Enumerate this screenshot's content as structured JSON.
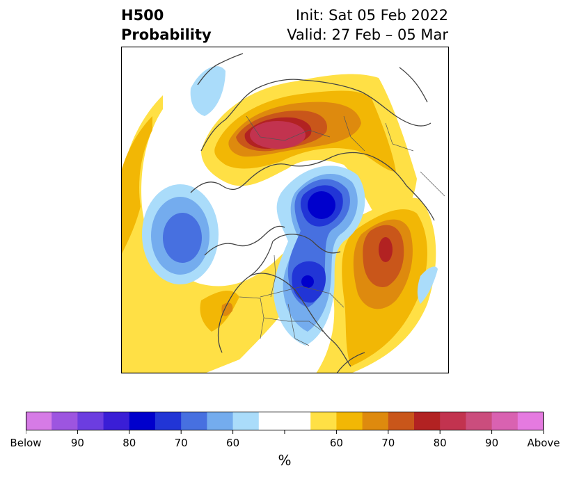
{
  "title": {
    "left_line1": "H500",
    "left_line2": "Probability",
    "right_line1": "Init: Sat 05 Feb 2022",
    "right_line2": "Valid: 27 Feb – 05 Mar"
  },
  "colorbar": {
    "colors": [
      "#d67be6",
      "#9d55e0",
      "#6c3de0",
      "#3a1ed6",
      "#0000cc",
      "#2135d6",
      "#4770e0",
      "#74acee",
      "#aadcfa",
      "#ffffff",
      "#ffffff",
      "#ffe045",
      "#f2b705",
      "#de8a0e",
      "#c9561a",
      "#b22222",
      "#c2334f",
      "#cb4d7d",
      "#d962b1",
      "#e57ae0"
    ],
    "tick_labels": [
      "Below",
      "90",
      "80",
      "70",
      "60",
      "",
      "60",
      "70",
      "80",
      "90",
      "Above"
    ],
    "unit": "%"
  },
  "legend_colors": {
    "above": [
      "#ffe045",
      "#f2b705",
      "#de8a0e",
      "#c9561a",
      "#b22222",
      "#c2334f"
    ],
    "below": [
      "#aadcfa",
      "#74acee",
      "#4770e0",
      "#2135d6",
      "#0000cc"
    ]
  }
}
